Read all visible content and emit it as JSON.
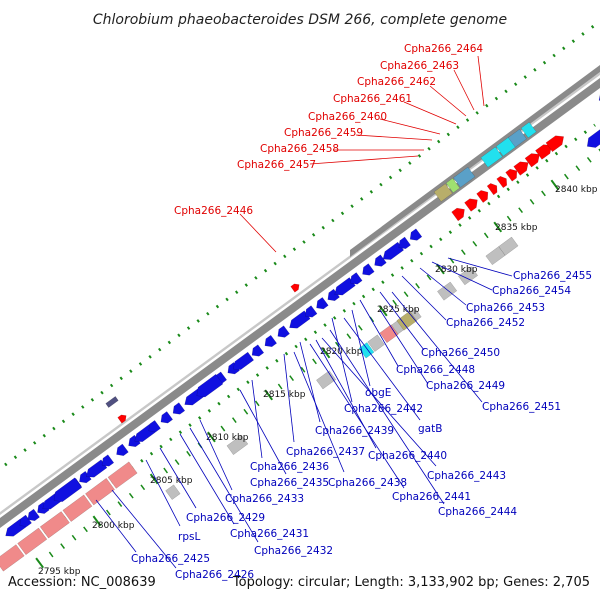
{
  "title": "Chlorobium phaeobacteroides DSM 266, complete genome",
  "footer": {
    "accession": "Accession: NC_008639",
    "summary": "Topology: circular; Length: 3,133,902 bp; Genes: 2,705"
  },
  "colors": {
    "backbone": "#8a8a8a",
    "forward_gene": "#ff0000",
    "reverse_gene": "#1010e0",
    "rna_gene": "#bfbfbf",
    "pseudo_gene": "#f08a8a",
    "highlight_gene": "#22e0ee",
    "special_gene": "#b8ae6a",
    "label_forward": "#e00000",
    "label_reverse": "#0000bb",
    "tick": "#1a8a1a"
  },
  "scale_labels": [
    "2795 kbp",
    "2800 kbp",
    "2805 kbp",
    "2810 kbp",
    "2815 kbp",
    "2820 kbp",
    "2825 kbp",
    "2830 kbp",
    "2835 kbp",
    "2840 kbp"
  ],
  "forward_labels": [
    "Cpha266_2464",
    "Cpha266_2463",
    "Cpha266_2462",
    "Cpha266_2461",
    "Cpha266_2460",
    "Cpha266_2459",
    "Cpha266_2458",
    "Cpha266_2457",
    "Cpha266_2446"
  ],
  "reverse_labels": [
    "Cpha266_2455",
    "Cpha266_2454",
    "Cpha266_2453",
    "Cpha266_2452",
    "Cpha266_2450",
    "Cpha266_2448",
    "obgE",
    "Cpha266_2449",
    "Cpha266_2451",
    "Cpha266_2442",
    "gatB",
    "Cpha266_2439",
    "Cpha266_2440",
    "Cpha266_2437",
    "Cpha266_2436",
    "Cpha266_2443",
    "Cpha266_2438",
    "Cpha266_2435",
    "Cpha266_2441",
    "Cpha266_2433",
    "Cpha266_2444",
    "Cpha266_2429",
    "rpsL",
    "Cpha266_2431",
    "Cpha266_2432",
    "Cpha266_2425",
    "Cpha266_2426"
  ]
}
